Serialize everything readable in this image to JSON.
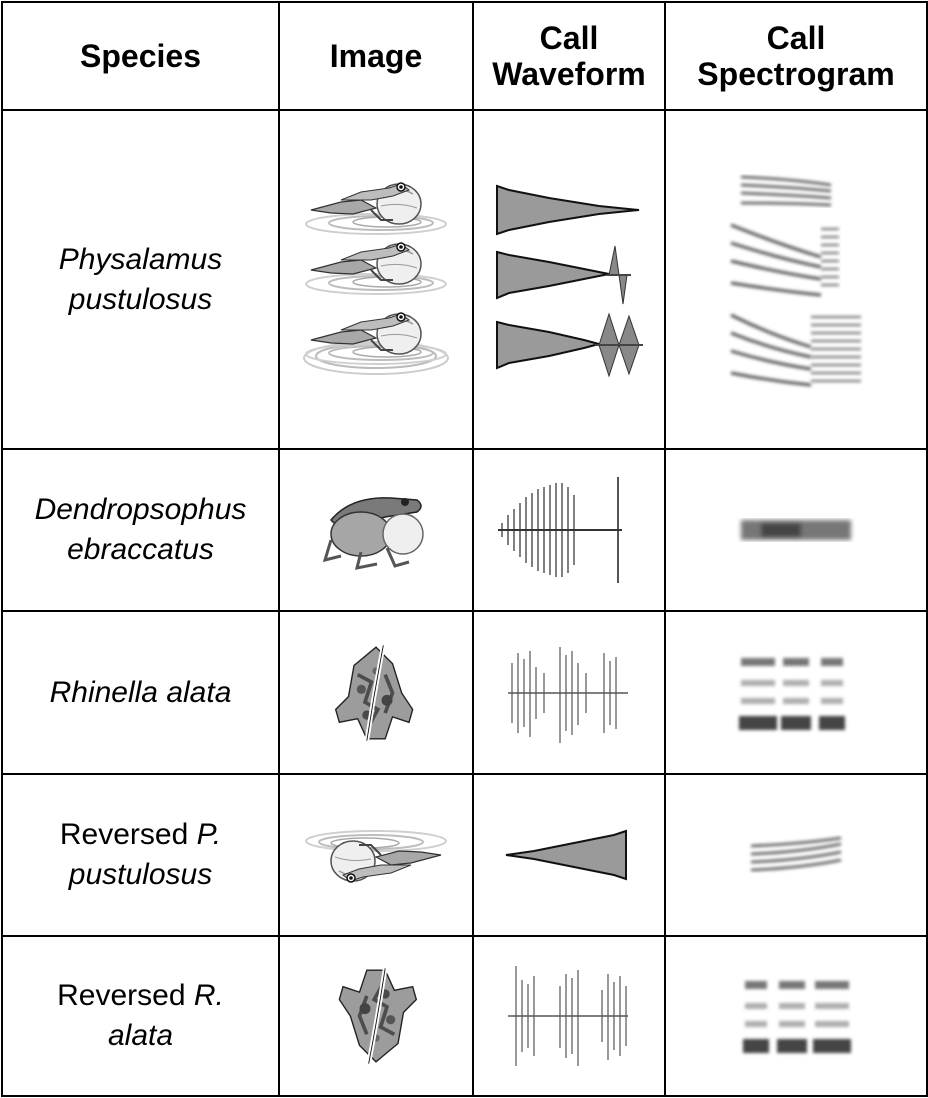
{
  "headers": {
    "species": "Species",
    "image": "Image",
    "waveform_line1": "Call",
    "waveform_line2": "Waveform",
    "spectrogram_line1": "Call",
    "spectrogram_line2": "Spectrogram"
  },
  "rows": [
    {
      "species_line1": "Physalamus",
      "species_line2": "pustulosus",
      "image_icon": "frog-side-calling-icon",
      "call_variants": 3
    },
    {
      "species_line1": "Dendropsophus",
      "species_line2": "ebraccatus",
      "image_icon": "treefrog-calling-icon"
    },
    {
      "species_line1": "Rhinella alata",
      "image_icon": "toad-top-view-icon"
    },
    {
      "species_prefix": "Reversed",
      "species_italic1": "P.",
      "species_line2": "pustulosus",
      "image_icon": "frog-side-calling-reversed-icon"
    },
    {
      "species_prefix": "Reversed",
      "species_italic1": "R.",
      "species_line2": "alata",
      "image_icon": "toad-top-view-reversed-icon"
    }
  ],
  "colors": {
    "fill_gray": "#9a9a9a",
    "dark": "#1a1a1a",
    "light": "#dcdcdc"
  }
}
